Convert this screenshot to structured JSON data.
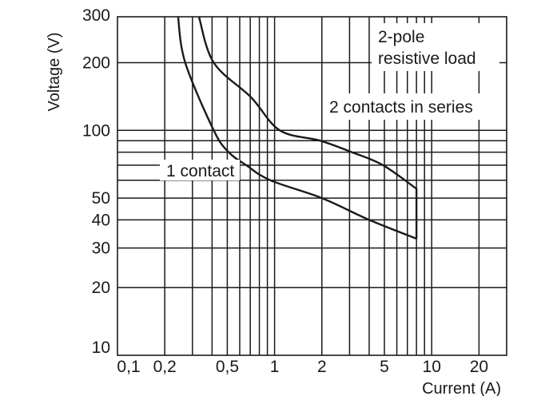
{
  "chart_data": {
    "type": "line",
    "title": "",
    "xlabel": "Current (A)",
    "ylabel": "Voltage (V)",
    "x_scale": "log",
    "y_scale": "log",
    "xlim": [
      0.1,
      30
    ],
    "ylim": [
      10,
      320
    ],
    "grid": true,
    "x_ticks": [
      {
        "value": 0.1,
        "label": "0,1"
      },
      {
        "value": 0.2,
        "label": "0,2"
      },
      {
        "value": 0.5,
        "label": "0,5"
      },
      {
        "value": 1,
        "label": "1"
      },
      {
        "value": 2,
        "label": "2"
      },
      {
        "value": 5,
        "label": "5"
      },
      {
        "value": 10,
        "label": "10"
      },
      {
        "value": 20,
        "label": "20"
      }
    ],
    "y_ticks": [
      {
        "value": 300,
        "label": "300"
      },
      {
        "value": 200,
        "label": "200"
      },
      {
        "value": 100,
        "label": "100"
      },
      {
        "value": 50,
        "label": "50"
      },
      {
        "value": 40,
        "label": "40"
      },
      {
        "value": 30,
        "label": "30"
      },
      {
        "value": 20,
        "label": "20"
      },
      {
        "value": 10,
        "label": "10"
      }
    ],
    "x_gridlines": [
      0.2,
      0.3,
      0.4,
      0.5,
      0.6,
      0.7,
      0.8,
      0.9,
      1,
      2,
      3,
      4,
      5,
      6,
      7,
      8,
      9,
      10,
      20
    ],
    "y_gridlines": [
      200,
      100,
      90,
      80,
      70,
      60,
      50,
      40,
      30,
      20
    ],
    "series": [
      {
        "name": "1 contact",
        "x": [
          0.243,
          0.27,
          0.41,
          0.51,
          0.66,
          0.94,
          2,
          4,
          8
        ],
        "y": [
          320,
          200,
          100,
          80,
          70,
          60,
          50,
          40,
          33
        ]
      },
      {
        "name": "2 contacts in series",
        "x": [
          0.33,
          0.41,
          0.71,
          1.08,
          1.95,
          3.1,
          4.9,
          8,
          8
        ],
        "y": [
          320,
          200,
          140,
          100,
          90,
          80,
          70,
          55,
          33
        ]
      }
    ],
    "annotations": {
      "title_line1": "2-pole",
      "title_line2": "resistive load",
      "series_label_2": "2 contacts in series",
      "series_label_1": "1 contact"
    },
    "colors": {
      "line": "#1a1a1a",
      "background": "#ffffff"
    }
  }
}
